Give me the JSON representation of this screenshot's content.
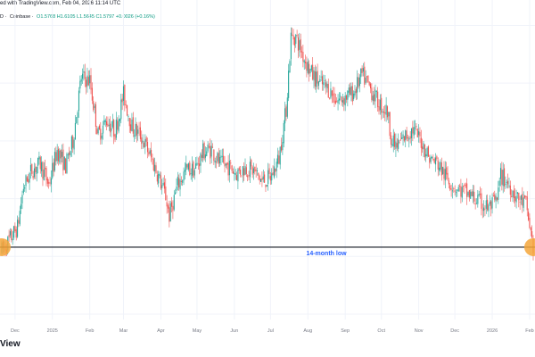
{
  "header": {
    "published": "ed with TradingView.com, Feb 04, 2026 11:14 UTC",
    "symbol_fragment": "D",
    "exchange": "Coinbase",
    "open": "O1.5768",
    "high": "H1.6105",
    "low": "L1.5645",
    "close": "C1.5797",
    "change": "+0.0026 (+0.16%)"
  },
  "footer": {
    "brand": "View"
  },
  "colors": {
    "up": "#26a69a",
    "down": "#ef5350",
    "header_green": "#089981",
    "support_line": "#131722",
    "marker": "#f4a63a",
    "annotation": "#2962ff",
    "axis_text": "#787b86",
    "gridline": "#f0f3fa"
  },
  "chart_data": {
    "type": "line",
    "title": "",
    "xlabel": "",
    "ylabel": "",
    "x_tick_labels": [
      "Dec",
      "2025",
      "Feb",
      "Mar",
      "Apr",
      "May",
      "Jun",
      "Jul",
      "Aug",
      "Sep",
      "Oct",
      "Nov",
      "Dec",
      "2026",
      "Feb"
    ],
    "x_tick_dates": [
      "2024-12-01",
      "2025-01-01",
      "2025-02-01",
      "2025-03-01",
      "2025-04-01",
      "2025-05-01",
      "2025-06-01",
      "2025-07-01",
      "2025-08-01",
      "2025-09-01",
      "2025-10-01",
      "2025-11-01",
      "2025-12-01",
      "2026-01-01",
      "2026-02-01"
    ],
    "grid": true,
    "legend": "none",
    "series": [
      {
        "x": [
          "2024-11-20",
          "2024-11-25",
          "2024-12-03",
          "2024-12-08",
          "2024-12-15",
          "2024-12-22",
          "2024-12-29",
          "2025-01-05",
          "2025-01-12",
          "2025-01-18",
          "2025-01-25",
          "2025-02-01",
          "2025-02-08",
          "2025-02-15",
          "2025-02-22",
          "2025-03-01",
          "2025-03-08",
          "2025-03-15",
          "2025-03-22",
          "2025-03-29",
          "2025-04-05",
          "2025-04-08",
          "2025-04-15",
          "2025-04-22",
          "2025-04-29",
          "2025-05-06",
          "2025-05-13",
          "2025-05-20",
          "2025-05-27",
          "2025-06-03",
          "2025-06-10",
          "2025-06-17",
          "2025-06-24",
          "2025-07-01",
          "2025-07-08",
          "2025-07-14",
          "2025-07-18",
          "2025-07-22",
          "2025-07-28",
          "2025-08-04",
          "2025-08-11",
          "2025-08-18",
          "2025-08-25",
          "2025-09-01",
          "2025-09-08",
          "2025-09-15",
          "2025-09-22",
          "2025-09-29",
          "2025-10-06",
          "2025-10-10",
          "2025-10-14",
          "2025-10-20",
          "2025-10-27",
          "2025-11-03",
          "2025-11-10",
          "2025-11-17",
          "2025-11-24",
          "2025-12-01",
          "2025-12-08",
          "2025-12-15",
          "2025-12-22",
          "2025-12-29",
          "2026-01-05",
          "2026-01-08",
          "2026-01-15",
          "2026-01-22",
          "2026-01-29",
          "2026-02-04"
        ],
        "values": [
          1.55,
          1.62,
          1.75,
          2.1,
          2.25,
          2.3,
          2.12,
          2.42,
          2.28,
          2.5,
          3.05,
          3.02,
          2.55,
          2.68,
          2.58,
          2.9,
          2.62,
          2.55,
          2.4,
          2.22,
          2.02,
          1.85,
          2.12,
          2.25,
          2.25,
          2.4,
          2.43,
          2.3,
          2.28,
          2.22,
          2.27,
          2.24,
          2.15,
          2.18,
          2.35,
          2.78,
          3.4,
          3.4,
          3.24,
          3.08,
          3.0,
          2.95,
          2.85,
          2.88,
          2.92,
          3.07,
          2.95,
          2.82,
          2.75,
          2.48,
          2.45,
          2.53,
          2.6,
          2.5,
          2.35,
          2.3,
          2.18,
          2.1,
          2.06,
          2.02,
          1.96,
          1.92,
          1.98,
          2.2,
          2.12,
          2.0,
          1.95,
          1.58
        ]
      }
    ],
    "annotations": [
      {
        "type": "horizontal_line",
        "y": 1.58,
        "label": "14-month low"
      },
      {
        "type": "marker",
        "x": "2024-11-20",
        "y": 1.58
      },
      {
        "type": "marker",
        "x": "2026-02-04",
        "y": 1.58
      }
    ]
  }
}
